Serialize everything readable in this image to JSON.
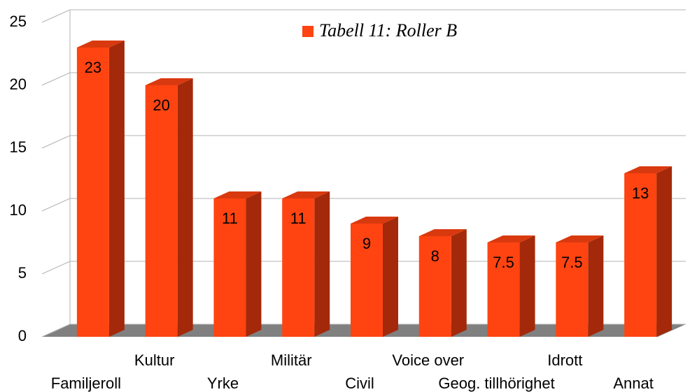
{
  "chart_data": {
    "type": "bar",
    "categories": [
      "Familjeroll",
      "Kultur",
      "Yrke",
      "Militär",
      "Civil",
      "Voice over",
      "Geog. tillhörighet",
      "Idrott",
      "Annat"
    ],
    "series": [
      {
        "name": "Tabell 11: Roller B",
        "color": "#ff4411",
        "values": [
          23,
          20,
          11,
          11,
          9,
          8,
          7.5,
          7.5,
          13
        ]
      }
    ],
    "ylim": [
      0,
      25
    ],
    "yticks": [
      0,
      5,
      10,
      15,
      20,
      25
    ],
    "grid": true,
    "legend": "top"
  }
}
